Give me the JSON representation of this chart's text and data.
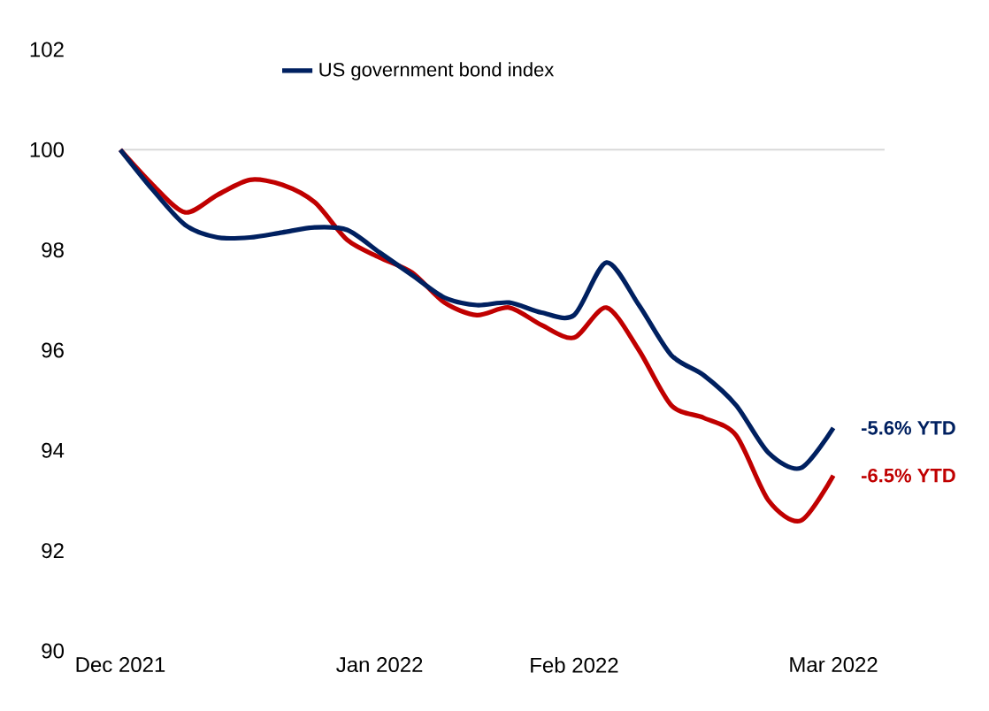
{
  "chart_data": {
    "type": "line",
    "categories": [
      "Dec 2021",
      null,
      null,
      null,
      null,
      null,
      null,
      null,
      "Jan 2022",
      null,
      null,
      null,
      null,
      null,
      "Feb 2022",
      null,
      null,
      null,
      null,
      null,
      null,
      null,
      "Mar 2022"
    ],
    "series": [
      {
        "color": "#c00000",
        "values": [
          100,
          99.3,
          98.75,
          99.1,
          99.4,
          99.3,
          98.95,
          98.2,
          97.85,
          97.55,
          96.95,
          96.7,
          96.85,
          96.5,
          96.25,
          96.85,
          96.0,
          94.9,
          94.65,
          94.3,
          93.0,
          92.6,
          93.5
        ]
      },
      {
        "name": "US government bond index",
        "color": "#002060",
        "values": [
          100,
          99.2,
          98.5,
          98.25,
          98.25,
          98.35,
          98.45,
          98.4,
          97.95,
          97.5,
          97.05,
          96.9,
          96.95,
          96.75,
          96.7,
          97.75,
          96.9,
          95.9,
          95.5,
          94.9,
          93.95,
          93.65,
          94.45
        ]
      }
    ],
    "ylim": [
      90,
      102
    ],
    "yticks": [
      90,
      92,
      94,
      96,
      98,
      100,
      102
    ],
    "ref_lines": [
      {
        "axis": "y",
        "value": 100,
        "color": "#d9d9d9"
      }
    ],
    "annotations": [
      "-6.5%  YTD",
      "-5.6%  YTD"
    ],
    "legend": "top",
    "grid": false,
    "marker": "none",
    "line_style": "solid"
  }
}
